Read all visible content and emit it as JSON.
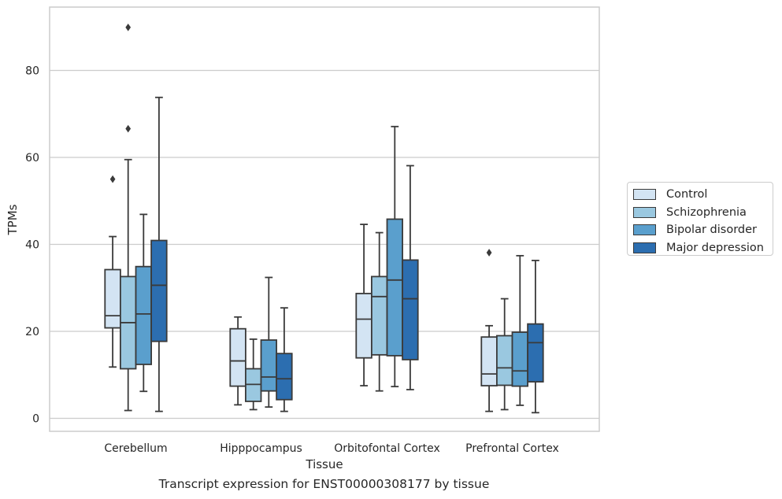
{
  "caption": "Transcript expression for ENST00000308177 by tissue",
  "chart_data": {
    "type": "box",
    "xlabel": "Tissue",
    "ylabel": "TPMs",
    "ylim": [
      -3,
      94.5
    ],
    "yticks": [
      0,
      20,
      40,
      60,
      80
    ],
    "grid": "horizontal",
    "legend_position": "right",
    "categories": [
      "Cerebellum",
      "Hipppocampus",
      "Orbitofontal Cortex",
      "Prefrontal Cortex"
    ],
    "series": [
      {
        "name": "Control",
        "color": "#d3e4f3",
        "boxes": [
          {
            "whislo": 11.8,
            "q1": 20.8,
            "med": 23.6,
            "q3": 34.2,
            "whishi": 41.8,
            "fliers": [
              55.0
            ]
          },
          {
            "whislo": 3.1,
            "q1": 7.4,
            "med": 13.2,
            "q3": 20.6,
            "whishi": 23.3,
            "fliers": []
          },
          {
            "whislo": 7.5,
            "q1": 13.9,
            "med": 22.8,
            "q3": 28.7,
            "whishi": 44.6,
            "fliers": []
          },
          {
            "whislo": 1.6,
            "q1": 7.5,
            "med": 10.2,
            "q3": 18.7,
            "whishi": 21.3,
            "fliers": [
              38.1
            ]
          }
        ]
      },
      {
        "name": "Schizophrenia",
        "color": "#9ac8e0",
        "boxes": [
          {
            "whislo": 1.8,
            "q1": 11.4,
            "med": 22.0,
            "q3": 32.6,
            "whishi": 59.5,
            "fliers": [
              66.6,
              89.9
            ]
          },
          {
            "whislo": 2.0,
            "q1": 3.9,
            "med": 7.8,
            "q3": 11.4,
            "whishi": 18.2,
            "fliers": []
          },
          {
            "whislo": 6.3,
            "q1": 14.6,
            "med": 28.0,
            "q3": 32.6,
            "whishi": 42.7,
            "fliers": []
          },
          {
            "whislo": 2.0,
            "q1": 7.6,
            "med": 11.6,
            "q3": 19.0,
            "whishi": 27.5,
            "fliers": []
          }
        ]
      },
      {
        "name": "Bipolar disorder",
        "color": "#5a9fcd",
        "boxes": [
          {
            "whislo": 6.2,
            "q1": 12.4,
            "med": 24.0,
            "q3": 34.9,
            "whishi": 46.9,
            "fliers": []
          },
          {
            "whislo": 2.6,
            "q1": 6.3,
            "med": 9.5,
            "q3": 18.0,
            "whishi": 32.4,
            "fliers": []
          },
          {
            "whislo": 7.3,
            "q1": 14.4,
            "med": 31.8,
            "q3": 45.8,
            "whishi": 67.1,
            "fliers": []
          },
          {
            "whislo": 3.0,
            "q1": 7.4,
            "med": 10.9,
            "q3": 19.8,
            "whishi": 37.4,
            "fliers": []
          }
        ]
      },
      {
        "name": "Major depression",
        "color": "#2c6eb0",
        "boxes": [
          {
            "whislo": 1.6,
            "q1": 17.7,
            "med": 30.6,
            "q3": 40.9,
            "whishi": 73.8,
            "fliers": []
          },
          {
            "whislo": 1.6,
            "q1": 4.3,
            "med": 9.1,
            "q3": 14.9,
            "whishi": 25.4,
            "fliers": []
          },
          {
            "whislo": 6.6,
            "q1": 13.5,
            "med": 27.5,
            "q3": 36.4,
            "whishi": 58.1,
            "fliers": []
          },
          {
            "whislo": 1.3,
            "q1": 8.4,
            "med": 17.4,
            "q3": 21.7,
            "whishi": 36.3,
            "fliers": []
          }
        ]
      }
    ]
  }
}
